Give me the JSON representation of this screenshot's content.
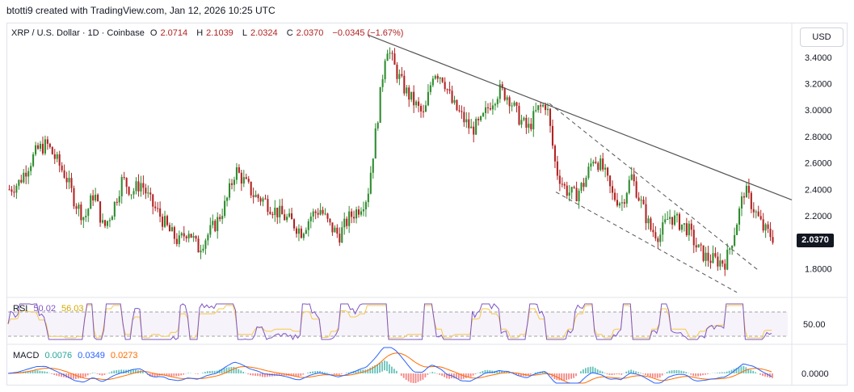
{
  "header": {
    "attribution": "btotti9 created with TradingView.com, Jan 12, 2026 10:25 UTC"
  },
  "legend": {
    "symbol": "XRP / U.S. Dollar · 1D · Coinbase",
    "open_label": "O",
    "open": "2.0714",
    "high_label": "H",
    "high": "2.1039",
    "low_label": "L",
    "low": "2.0324",
    "close_label": "C",
    "close": "2.0370",
    "change": "−0.0345 (−1.67%)"
  },
  "currency_button": "USD",
  "last_price": "2.0370",
  "colors": {
    "up": "#26a69a",
    "down": "#ef5350",
    "up_candle": "#2e8b2e",
    "down_candle": "#b22222",
    "trendline": "#555555",
    "rsi_line": "#7e57c2",
    "rsi_ma": "#f7c948",
    "macd_line": "#2962ff",
    "signal_line": "#ff6d00",
    "hist_up": "#26a69a",
    "hist_down": "#ef5350"
  },
  "rsi_panel": {
    "label": "RSI",
    "value": "50.02",
    "ma_value": "56.03",
    "axis_label": "50.00"
  },
  "macd_panel": {
    "label": "MACD",
    "hist": "0.0076",
    "macd": "0.0349",
    "signal": "0.0273",
    "axis_label": "0.0000"
  },
  "chart_data": {
    "type": "candlestick",
    "y_axis_ticks": [
      "3.4000",
      "3.2000",
      "3.0000",
      "2.8000",
      "2.6000",
      "2.4000",
      "2.2000",
      "1.8000"
    ],
    "y_axis_tick_values": [
      3.4,
      3.2,
      3.0,
      2.8,
      2.6,
      2.4,
      2.2,
      1.8
    ],
    "ylim": [
      1.6,
      3.65
    ],
    "close_path": [
      2.4,
      2.45,
      2.58,
      2.7,
      2.74,
      2.62,
      2.5,
      2.3,
      2.18,
      2.38,
      2.1,
      2.25,
      2.48,
      2.38,
      2.45,
      2.3,
      2.2,
      2.08,
      2.0,
      2.1,
      1.95,
      2.05,
      2.15,
      2.3,
      2.55,
      2.45,
      2.35,
      2.32,
      2.25,
      2.2,
      2.15,
      2.08,
      2.2,
      2.25,
      2.12,
      2.05,
      2.18,
      2.25,
      2.35,
      2.9,
      3.5,
      3.3,
      3.15,
      3.05,
      2.95,
      3.3,
      3.25,
      3.05,
      2.95,
      2.85,
      2.9,
      3.05,
      3.15,
      3.1,
      2.95,
      2.85,
      3.0,
      3.05,
      2.55,
      2.4,
      2.35,
      2.45,
      2.65,
      2.55,
      2.35,
      2.3,
      2.5,
      2.3,
      2.1,
      2.05,
      2.2,
      2.15,
      2.1,
      1.95,
      1.88,
      1.86,
      1.85,
      2.1,
      2.4,
      2.25,
      2.1,
      2.04
    ],
    "descending_trendline": [
      [
        "peak",
        3.57
      ],
      [
        "end",
        2.32
      ]
    ],
    "channel_lines": "dashed"
  }
}
